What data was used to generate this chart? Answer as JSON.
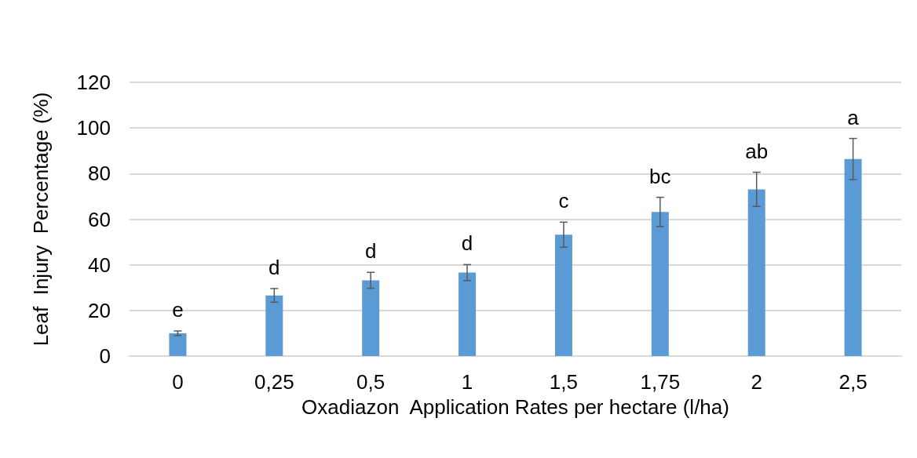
{
  "chart_data": {
    "type": "bar",
    "xlabel": "Oxadiazon  Application Rates per hectare (l/ha)",
    "ylabel": "Leaf  Injury  Percentage (%)",
    "categories": [
      "0",
      "0,25",
      "0,5",
      "1",
      "1,5",
      "1,75",
      "2",
      "2,5"
    ],
    "values": [
      10,
      26.6,
      33.2,
      36.6,
      53.2,
      63.2,
      73.1,
      86.4
    ],
    "errors": [
      1,
      3,
      3.5,
      3.5,
      5.5,
      6.4,
      7.5,
      9
    ],
    "color": "#5b9bd5",
    "ylim": [
      0,
      120
    ],
    "yticks": [
      0,
      20,
      40,
      60,
      80,
      100,
      120
    ],
    "grid": "y",
    "annotations": [
      "e",
      "d",
      "d",
      "d",
      "c",
      "bc",
      "ab",
      "a"
    ]
  }
}
